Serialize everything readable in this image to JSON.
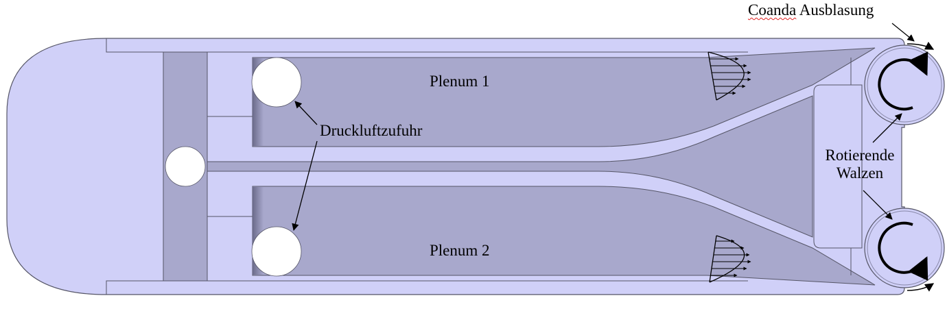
{
  "labels": {
    "coanda_1": "Coanda",
    "coanda_2": "Ausblasung",
    "plenum_1": "Plenum 1",
    "plenum_2": "Plenum 2",
    "supply": "Druckluftzufuhr",
    "rollers_1": "Rotierende",
    "rollers_2": "Walzen"
  },
  "colors": {
    "body_fill": "#d0d0f8",
    "plenum_fill": "#a8a8cc",
    "outline": "#555566",
    "hole": "#ffffff",
    "arrow": "#000000",
    "spellcheck_underline": "#e02020"
  }
}
